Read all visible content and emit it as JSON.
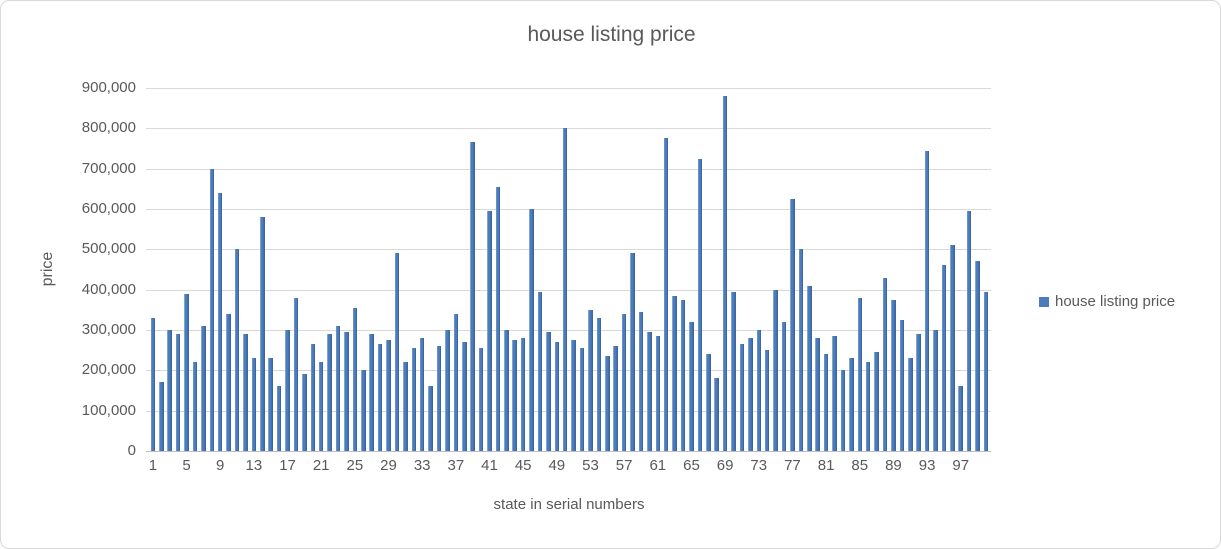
{
  "title": "house listing price",
  "y_axis": {
    "title": "price",
    "tick_labels": [
      "0",
      "100,000",
      "200,000",
      "300,000",
      "400,000",
      "500,000",
      "600,000",
      "700,000",
      "800,000",
      "900,000"
    ]
  },
  "x_axis": {
    "title": "state in serial numbers",
    "tick_labels": [
      1,
      5,
      9,
      13,
      17,
      21,
      25,
      29,
      33,
      37,
      41,
      45,
      49,
      53,
      57,
      61,
      65,
      69,
      73,
      77,
      81,
      85,
      89,
      93,
      97
    ]
  },
  "legend": {
    "label": "house listing price",
    "marker_color": "#4c7cbe",
    "position": "right"
  },
  "colors": {
    "bar_fill": "#4c7cbe",
    "bar_edge_dark": "#39679e",
    "bar_edge_light": "#7fa5cf",
    "gridline": "#d9d9d9",
    "axis_line": "#bfbfbf",
    "text": "#595959",
    "chart_border": "#d9d9d9",
    "background": "#ffffff"
  },
  "chart_data": {
    "type": "bar",
    "title": "house listing price",
    "xlabel": "state in serial numbers",
    "ylabel": "price",
    "ylim": [
      0,
      900000
    ],
    "ytick_interval": 100000,
    "grid": true,
    "legend_position": "right",
    "categories_note": "x = state serial numbers 1 to 100",
    "x_start": 1,
    "xtick_labels": [
      1,
      5,
      9,
      13,
      17,
      21,
      25,
      29,
      33,
      37,
      41,
      45,
      49,
      53,
      57,
      61,
      65,
      69,
      73,
      77,
      81,
      85,
      89,
      93,
      97
    ],
    "series": [
      {
        "name": "house listing price",
        "values": [
          330000,
          170000,
          300000,
          290000,
          390000,
          220000,
          310000,
          700000,
          640000,
          340000,
          500000,
          290000,
          230000,
          580000,
          230000,
          160000,
          300000,
          380000,
          190000,
          265000,
          220000,
          290000,
          310000,
          295000,
          355000,
          200000,
          290000,
          265000,
          275000,
          490000,
          220000,
          255000,
          280000,
          160000,
          260000,
          300000,
          340000,
          270000,
          765000,
          255000,
          595000,
          655000,
          300000,
          275000,
          280000,
          600000,
          395000,
          295000,
          270000,
          800000,
          275000,
          255000,
          350000,
          330000,
          235000,
          260000,
          340000,
          490000,
          345000,
          295000,
          285000,
          775000,
          385000,
          375000,
          320000,
          725000,
          240000,
          180000,
          880000,
          395000,
          265000,
          280000,
          300000,
          250000,
          400000,
          320000,
          625000,
          500000,
          410000,
          280000,
          240000,
          285000,
          200000,
          230000,
          380000,
          220000,
          245000,
          430000,
          375000,
          325000,
          230000,
          290000,
          745000,
          300000,
          460000,
          510000,
          160000,
          595000,
          470000,
          395000
        ]
      }
    ]
  }
}
